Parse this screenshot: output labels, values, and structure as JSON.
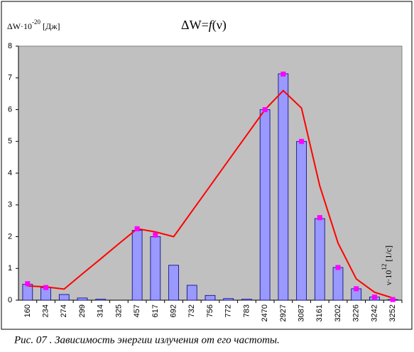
{
  "chart_data": {
    "type": "bar",
    "title": [
      "ΔW=",
      "f",
      "(ν)"
    ],
    "ylabel": [
      "ΔW·10",
      "-20",
      " [Дж]"
    ],
    "xlabel": [
      "ν·10",
      "12",
      " [1/с]"
    ],
    "caption": "Рис. 07 . Зависимость энергии излучения от его частоты.",
    "categories": [
      "160",
      "234",
      "274",
      "299",
      "314",
      "325",
      "457",
      "617",
      "692",
      "732",
      "756",
      "772",
      "783",
      "2470",
      "2927",
      "3087",
      "3161",
      "3202",
      "3226",
      "3242",
      "3252"
    ],
    "series": [
      {
        "type": "bar",
        "color": "#9999ff",
        "values": [
          0.5,
          0.4,
          0.18,
          0.07,
          0.03,
          0,
          2.2,
          2.0,
          1.1,
          0.47,
          0.15,
          0.05,
          0.03,
          6.0,
          7.13,
          5.0,
          2.57,
          1.03,
          0.36,
          0.1,
          0.02
        ]
      },
      {
        "type": "line",
        "color": "#ff0000",
        "values": [
          0.45,
          0.42,
          0.35,
          0.83,
          1.3,
          1.78,
          2.25,
          2.15,
          2.0,
          2.8,
          3.6,
          4.4,
          5.2,
          6.0,
          6.6,
          6.05,
          3.6,
          1.8,
          0.67,
          0.25,
          0.07
        ]
      },
      {
        "type": "marker",
        "color": "#ff00ff",
        "values": [
          0.52,
          0.4,
          null,
          null,
          null,
          null,
          2.25,
          2.05,
          null,
          null,
          null,
          null,
          null,
          6.0,
          7.12,
          5.0,
          2.6,
          1.03,
          0.36,
          0.1,
          0.02
        ]
      }
    ],
    "ylim": [
      0,
      8
    ],
    "yticks": [
      0,
      1,
      2,
      3,
      4,
      5,
      6,
      7,
      8
    ],
    "plot_background": "#c0c0c0",
    "grid": false
  }
}
